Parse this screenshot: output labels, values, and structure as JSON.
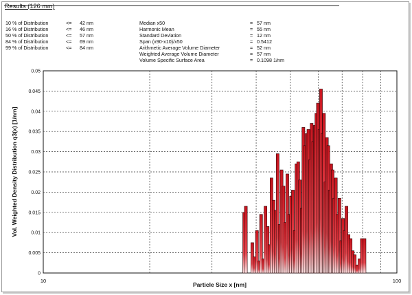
{
  "results": {
    "title": "Results (126 mm)",
    "distribution": [
      {
        "label": "10 % of Distribution",
        "op": "<=",
        "value": "42 nm"
      },
      {
        "label": "16 % of Distribution",
        "op": "<=",
        "value": "46 nm"
      },
      {
        "label": "50 % of Distribution",
        "op": "<=",
        "value": "57 nm"
      },
      {
        "label": "84 % of Distribution",
        "op": "<=",
        "value": "69 nm"
      },
      {
        "label": "99 % of Distribution",
        "op": "<=",
        "value": "84 nm"
      }
    ],
    "statistics": [
      {
        "label": "Median x50",
        "op": "=",
        "value": "57 nm"
      },
      {
        "label": "Harmonic Mean",
        "op": "=",
        "value": "55 nm"
      },
      {
        "label": "Standard Deviation",
        "op": "=",
        "value": "12 nm"
      },
      {
        "label": "Span (x90-x10)/x50",
        "op": "=",
        "value": "0.5412"
      },
      {
        "label": "Arithmetic Average Volume Diameter",
        "op": "=",
        "value": "52 nm"
      },
      {
        "label": "Weighted Average Volume Diameter",
        "op": "=",
        "value": "57 nm"
      },
      {
        "label": "Volume Specific Surface Area",
        "op": "=",
        "value": "0.1098 1/nm"
      }
    ]
  },
  "chart_data": {
    "type": "bar",
    "xlabel": "Particle Size x [nm]",
    "ylabel": "Vol. Weighted Density Distribution q3(x) [1/nm]",
    "xscale": "log",
    "xlim": [
      10,
      100
    ],
    "ylim": [
      0,
      0.05
    ],
    "xticks": [
      "10",
      "100"
    ],
    "yticks": [
      "0",
      "0.005",
      "0.01",
      "0.015",
      "0.02",
      "0.025",
      "0.03",
      "0.035",
      "0.04",
      "0.045",
      "0.05"
    ],
    "grid": true,
    "bar_color": "#c8141e",
    "x": [
      37.0,
      37.4,
      39.0,
      39.6,
      40.2,
      40.8,
      41.3,
      41.9,
      42.5,
      43.1,
      43.6,
      44.2,
      44.8,
      45.4,
      46.0,
      46.6,
      47.2,
      47.8,
      48.4,
      49.0,
      49.6,
      50.2,
      50.8,
      51.4,
      52.0,
      52.6,
      53.2,
      53.8,
      54.4,
      55.0,
      55.6,
      56.2,
      56.8,
      57.4,
      58.0,
      58.6,
      59.2,
      59.8,
      60.4,
      61.0,
      61.6,
      62.2,
      62.8,
      63.4,
      64.0,
      64.6,
      65.2,
      65.8,
      66.5,
      67.2,
      68.0,
      68.8,
      69.6,
      70.4,
      71.2,
      72.0,
      73.0,
      74.0,
      75.0,
      76.0,
      77.2,
      78.4,
      79.6,
      81.0
    ],
    "values": [
      0.015,
      0.0165,
      0.0075,
      0.004,
      0.0105,
      0.003,
      0.0145,
      0.0035,
      0.0165,
      0.0115,
      0.007,
      0.0235,
      0.018,
      0.0155,
      0.0295,
      0.012,
      0.0255,
      0.0215,
      0.0125,
      0.0245,
      0.0145,
      0.019,
      0.0205,
      0.0105,
      0.027,
      0.0275,
      0.023,
      0.016,
      0.036,
      0.0315,
      0.0345,
      0.0355,
      0.028,
      0.037,
      0.0325,
      0.0365,
      0.0395,
      0.042,
      0.0355,
      0.0455,
      0.0345,
      0.0395,
      0.0225,
      0.0335,
      0.0315,
      0.0205,
      0.027,
      0.0255,
      0.0185,
      0.0235,
      0.0145,
      0.0185,
      0.008,
      0.0135,
      0.0105,
      0.0165,
      0.0095,
      0.0085,
      0.0055,
      0.0045,
      0.002,
      0.0035,
      0.0085,
      0.0085
    ]
  }
}
